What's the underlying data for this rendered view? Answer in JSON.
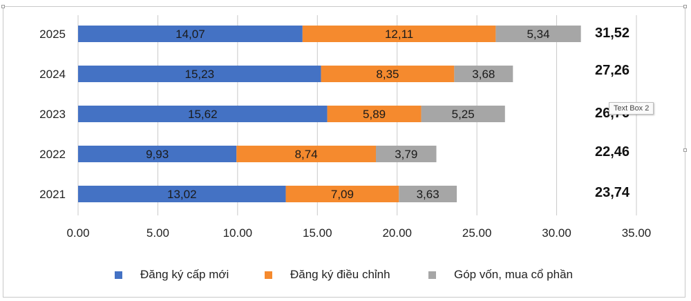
{
  "chart_data": {
    "type": "bar",
    "orientation": "horizontal",
    "stacked": true,
    "categories": [
      "2025",
      "2024",
      "2023",
      "2022",
      "2021"
    ],
    "series": [
      {
        "name": "Đăng ký cấp mới",
        "color": "#4472c4",
        "values": [
          14.07,
          15.23,
          15.62,
          9.93,
          13.02
        ],
        "labels": [
          "14,07",
          "15,23",
          "15,62",
          "9,93",
          "13,02"
        ]
      },
      {
        "name": "Đăng ký điều chỉnh",
        "color": "#f58a2e",
        "values": [
          12.11,
          8.35,
          5.89,
          8.74,
          7.09
        ],
        "labels": [
          "12,11",
          "8,35",
          "5,89",
          "8,74",
          "7,09"
        ]
      },
      {
        "name": "Góp vốn, mua cổ phần",
        "color": "#a6a6a6",
        "values": [
          5.34,
          3.68,
          5.25,
          3.79,
          3.63
        ],
        "labels": [
          "5,34",
          "3,68",
          "5,25",
          "3,79",
          "3,63"
        ]
      }
    ],
    "totals": [
      "31,52",
      "27,26",
      "26,76",
      "22,46",
      "23,74"
    ],
    "xlim": [
      0,
      35
    ],
    "x_ticks": [
      "0.00",
      "5.00",
      "10.00",
      "15.00",
      "20.00",
      "25.00",
      "30.00",
      "35.00"
    ],
    "grid": true,
    "legend_position": "bottom"
  },
  "tooltip": "Text Box 2"
}
